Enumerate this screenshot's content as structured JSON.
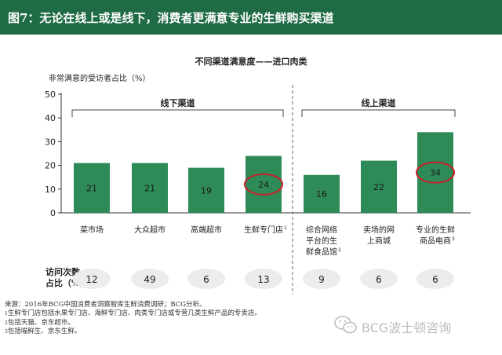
{
  "header": {
    "title": "图7：无论在线上或是线下，消费者更满意专业的生鲜购买渠道",
    "bg_color": "#1f6b45"
  },
  "chart_data": {
    "type": "bar",
    "title": "不同渠道满意度——进口肉类",
    "ylabel": "非常满意的受访者占比（%）",
    "ylim": [
      0,
      50
    ],
    "yticks": [
      0,
      10,
      20,
      30,
      40,
      50
    ],
    "bar_color": "#2e8b57",
    "highlight_color": "#c8202a",
    "categories": [
      "菜市场",
      "大众超市",
      "高端超市",
      "生鲜专门店",
      "综合网络平台的生鲜食品馆",
      "卖场的网上商城",
      "专业的生鲜商品电商"
    ],
    "category_lines": [
      [
        "菜市场"
      ],
      [
        "大众超市"
      ],
      [
        "高端超市"
      ],
      [
        "生鲜专门店"
      ],
      [
        "综合网络",
        "平台的生",
        "鲜食品馆"
      ],
      [
        "卖场的网",
        "上商城"
      ],
      [
        "专业的生鲜",
        "商品电商"
      ]
    ],
    "category_sup": [
      "",
      "",
      "",
      "1",
      "2",
      "",
      "3"
    ],
    "values": [
      21,
      21,
      19,
      24,
      16,
      22,
      34
    ],
    "highlighted": [
      false,
      false,
      false,
      true,
      false,
      false,
      true
    ],
    "groups": [
      {
        "label": "线下渠道",
        "start": 0,
        "end": 3
      },
      {
        "label": "线上渠道",
        "start": 4,
        "end": 6
      }
    ],
    "sample_label_lines": [
      "访问次数",
      "占比（%）"
    ],
    "sample_sizes": [
      12,
      49,
      6,
      13,
      9,
      6,
      6
    ]
  },
  "footer": {
    "source": "来源：2016年BCG中国消费者洞察智库生鲜消费调研；BCG分析。",
    "notes": [
      {
        "mark": "1",
        "text": "生鲜专门店包括水果专门店、海鲜专门店、肉类专门店或专营几类生鲜产品的专卖店。"
      },
      {
        "mark": "2",
        "text": "包括天猫、京东超市。"
      },
      {
        "mark": "3",
        "text": "包括喵鲜生、京东生鲜。"
      }
    ]
  },
  "watermark": {
    "text": "BCG波士顿咨询",
    "icon": "wechat-icon"
  }
}
